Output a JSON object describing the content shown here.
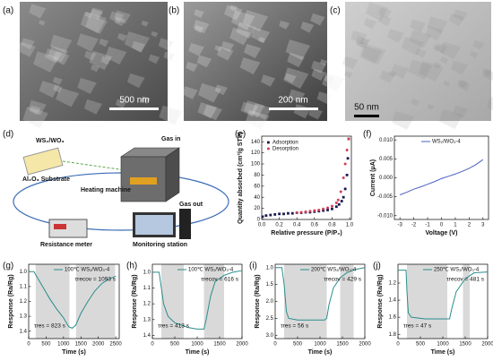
{
  "panel_labels": [
    "(a)",
    "(b)",
    "(c)",
    "(d)",
    "(e)",
    "(f)",
    "(g)",
    "(h)",
    "(i)",
    "(j)"
  ],
  "images": [
    {
      "scale_bar": "500 nm"
    },
    {
      "scale_bar": "200 nm"
    },
    {
      "scale_bar": "50 nm"
    }
  ],
  "diagram": {
    "labels": [
      "WS₂/WO₃",
      "Al₂O₃ Substrate",
      "Gas in",
      "Heating machine",
      "Gas out",
      "Resistance meter",
      "Monitoring station"
    ]
  },
  "chart_data": [
    {
      "type": "scatter",
      "xlabel": "Relative pressure (P/P₀)",
      "ylabel": "Quantity absorbed (cm³/g STP)",
      "xlim": [
        0,
        1.02
      ],
      "xticks": [
        {
          "value": 0,
          "label": "0.0"
        },
        0.2,
        0.4,
        0.6,
        0.8,
        {
          "value": 1,
          "label": "1.0"
        }
      ],
      "ylim": [
        0,
        150
      ],
      "yticks": [
        0,
        20,
        40,
        60,
        80,
        100,
        120,
        140
      ],
      "series": [
        {
          "name": "Adsorption",
          "color": "#1a1a50",
          "marker": "square",
          "x": [
            0.01,
            0.05,
            0.1,
            0.15,
            0.2,
            0.25,
            0.3,
            0.35,
            0.4,
            0.45,
            0.5,
            0.55,
            0.6,
            0.65,
            0.7,
            0.75,
            0.8,
            0.85,
            0.88,
            0.91,
            0.93,
            0.95,
            0.97,
            0.98,
            0.99
          ],
          "values": [
            5,
            7,
            8,
            9,
            10,
            10,
            11,
            11,
            12,
            12,
            13,
            13,
            14,
            15,
            16,
            17,
            19,
            23,
            27,
            33,
            40,
            55,
            80,
            110,
            145
          ]
        },
        {
          "name": "Desorption",
          "color": "#d0405a",
          "marker": "circle",
          "x": [
            0.99,
            0.97,
            0.95,
            0.93,
            0.9,
            0.87,
            0.85,
            0.8,
            0.75,
            0.7,
            0.65,
            0.6,
            0.55,
            0.5,
            0.45,
            0.4
          ],
          "values": [
            145,
            125,
            100,
            75,
            50,
            35,
            30,
            24,
            21,
            19,
            17,
            16,
            15,
            14,
            13,
            12
          ]
        }
      ]
    },
    {
      "type": "line",
      "xlabel": "Voltage (V)",
      "ylabel": "Current (μA)",
      "xlim": [
        -3.4,
        3.4
      ],
      "xticks": [
        -3,
        -2,
        -1,
        0,
        1,
        2,
        3
      ],
      "ylim": [
        -0.011,
        0.011
      ],
      "yticks": [
        {
          "value": -0.01,
          "label": "-0.010"
        },
        -0.005,
        {
          "value": 0,
          "label": "0.000"
        },
        0.005,
        {
          "value": 0.01,
          "label": "0.010"
        }
      ],
      "series": [
        {
          "name": "WS₂/WO₃-4",
          "color": "#4a5fc1",
          "x": [
            -3,
            -2.5,
            -2,
            -1.5,
            -1,
            -0.5,
            0,
            0.5,
            1,
            1.5,
            2,
            2.5,
            3
          ],
          "values": [
            -0.0045,
            -0.0038,
            -0.003,
            -0.0024,
            -0.0017,
            -0.001,
            -0.0002,
            0.0004,
            0.001,
            0.0017,
            0.0025,
            0.0035,
            0.0048
          ]
        }
      ]
    },
    {
      "type": "line",
      "xlabel": "Time (s)",
      "ylabel": "Response (Ra/Rg)",
      "xlim": [
        0,
        2600
      ],
      "xticks": [
        0,
        500,
        1000,
        1500,
        2000,
        2500
      ],
      "ylim": [
        1.45,
        0.95
      ],
      "yticks": [
        {
          "value": 1,
          "label": "1.0"
        },
        1.1,
        1.2,
        1.3,
        1.4
      ],
      "shaded": [
        [
          200,
          1170
        ],
        [
          1360,
          2480
        ]
      ],
      "annotations": [
        "τres = 823 s",
        "τrecov = 1093 s"
      ],
      "series": [
        {
          "name": "100℃ WS₂/WO₃-4",
          "color": "#2b8c8c",
          "x": [
            0,
            150,
            200,
            400,
            600,
            800,
            1000,
            1150,
            1250,
            1350,
            1500,
            1700,
            1900,
            2100,
            2300,
            2500
          ],
          "values": [
            1.0,
            1.0,
            1.02,
            1.1,
            1.18,
            1.25,
            1.31,
            1.37,
            1.38,
            1.36,
            1.28,
            1.2,
            1.13,
            1.08,
            1.05,
            1.03
          ]
        }
      ]
    },
    {
      "type": "line",
      "xlabel": "Time (s)",
      "ylabel": "Response (Ra/Rg)",
      "xlim": [
        0,
        2000
      ],
      "xticks": [
        0,
        500,
        1000,
        1500,
        2000
      ],
      "ylim": [
        1.42,
        0.95
      ],
      "yticks": [
        {
          "value": 1,
          "label": "1.0"
        },
        1.1,
        1.2,
        1.3,
        1.4
      ],
      "shaded": [
        [
          200,
          700
        ],
        [
          1150,
          1600
        ]
      ],
      "annotations": [
        "τres = 413 s",
        "τrecov = 616 s"
      ],
      "series": [
        {
          "name": "100℃ WS₂/WO₃-4",
          "color": "#2b8c8c",
          "x": [
            0,
            150,
            200,
            250,
            350,
            500,
            700,
            800,
            1000,
            1150,
            1200,
            1300,
            1400,
            1600,
            1800,
            2000
          ],
          "values": [
            1.0,
            1.0,
            1.1,
            1.2,
            1.28,
            1.32,
            1.34,
            1.35,
            1.36,
            1.36,
            1.3,
            1.15,
            1.06,
            1.02,
            1.0,
            0.99
          ]
        }
      ]
    },
    {
      "type": "line",
      "xlabel": "Time (s)",
      "ylabel": "Response (Ra/Rg)",
      "xlim": [
        0,
        2000
      ],
      "xticks": [
        0,
        500,
        1000,
        1500,
        2000
      ],
      "ylim": [
        3.1,
        0.9
      ],
      "yticks": [
        {
          "value": 1,
          "label": "1.0"
        },
        1.5,
        {
          "value": 2,
          "label": "2.0"
        },
        2.5,
        {
          "value": 3,
          "label": "3.0"
        }
      ],
      "shaded": [
        [
          200,
          1150
        ],
        [
          1450,
          1750
        ]
      ],
      "annotations": [
        "τres = 56 s",
        "τrecov = 429 s"
      ],
      "series": [
        {
          "name": "200℃ WS₂/WO₃-4",
          "color": "#2b8c8c",
          "x": [
            0,
            150,
            200,
            250,
            300,
            500,
            800,
            1100,
            1150,
            1200,
            1300,
            1450,
            1600,
            1800,
            2000
          ],
          "values": [
            1.0,
            1.0,
            1.5,
            2.3,
            2.5,
            2.55,
            2.55,
            2.55,
            2.5,
            2.1,
            1.6,
            1.3,
            1.15,
            1.05,
            1.0
          ]
        }
      ]
    },
    {
      "type": "line",
      "xlabel": "Time (s)",
      "ylabel": "Response (Ra/Rg)",
      "xlim": [
        0,
        2000
      ],
      "xticks": [
        0,
        500,
        1000,
        1500,
        2000
      ],
      "ylim": [
        1.85,
        0.98
      ],
      "yticks": [
        1.2,
        1.4,
        1.6,
        1.8
      ],
      "shaded": [
        [
          200,
          1100
        ],
        [
          1450,
          1600
        ]
      ],
      "annotations": [
        "τres = 47 s",
        "τrecov = 481 s"
      ],
      "series": [
        {
          "name": "250℃ WS₂/WO₃-4",
          "color": "#2b8c8c",
          "x": [
            0,
            180,
            200,
            230,
            300,
            600,
            1000,
            1150,
            1200,
            1300,
            1500,
            1700,
            2000
          ],
          "values": [
            1.05,
            1.05,
            1.3,
            1.55,
            1.6,
            1.62,
            1.62,
            1.62,
            1.5,
            1.3,
            1.15,
            1.08,
            1.07
          ]
        }
      ]
    }
  ]
}
